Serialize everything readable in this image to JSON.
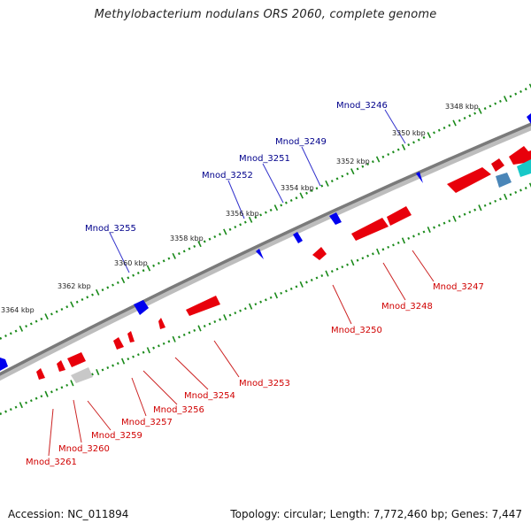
{
  "title": "Methylobacterium nodulans ORS 2060, complete genome",
  "accession_text": "Accession: NC_011894",
  "summary_text": "Topology: circular; Length: 7,772,460 bp; Genes: 7,447",
  "colors": {
    "forward_gene": "#e8000b",
    "reverse_gene": "#0000ee",
    "label_forward": "#d00000",
    "label_reverse": "#00008b",
    "scale_tick": "#1a8a1a",
    "backbone": "#777777",
    "rna_feature": "#00cccc",
    "other_feature": "#4a7fb5",
    "pseudo_feature": "#cccccc"
  },
  "scale_labels": [
    {
      "text": "3348 kbp",
      "kbp": 3348
    },
    {
      "text": "3350 kbp",
      "kbp": 3350
    },
    {
      "text": "3352 kbp",
      "kbp": 3352
    },
    {
      "text": "3354 kbp",
      "kbp": 3354
    },
    {
      "text": "3356 kbp",
      "kbp": 3356
    },
    {
      "text": "3358 kbp",
      "kbp": 3358
    },
    {
      "text": "3360 kbp",
      "kbp": 3360
    },
    {
      "text": "3362 kbp",
      "kbp": 3362
    },
    {
      "text": "3364 kbp",
      "kbp": 3364
    }
  ],
  "gene_labels_reverse": [
    "Mnod_3246",
    "Mnod_3249",
    "Mnod_3251",
    "Mnod_3252",
    "Mnod_3255"
  ],
  "gene_labels_forward": [
    "Mnod_3247",
    "Mnod_3248",
    "Mnod_3250",
    "Mnod_3253",
    "Mnod_3254",
    "Mnod_3256",
    "Mnod_3257",
    "Mnod_3259",
    "Mnod_3260",
    "Mnod_3261"
  ]
}
